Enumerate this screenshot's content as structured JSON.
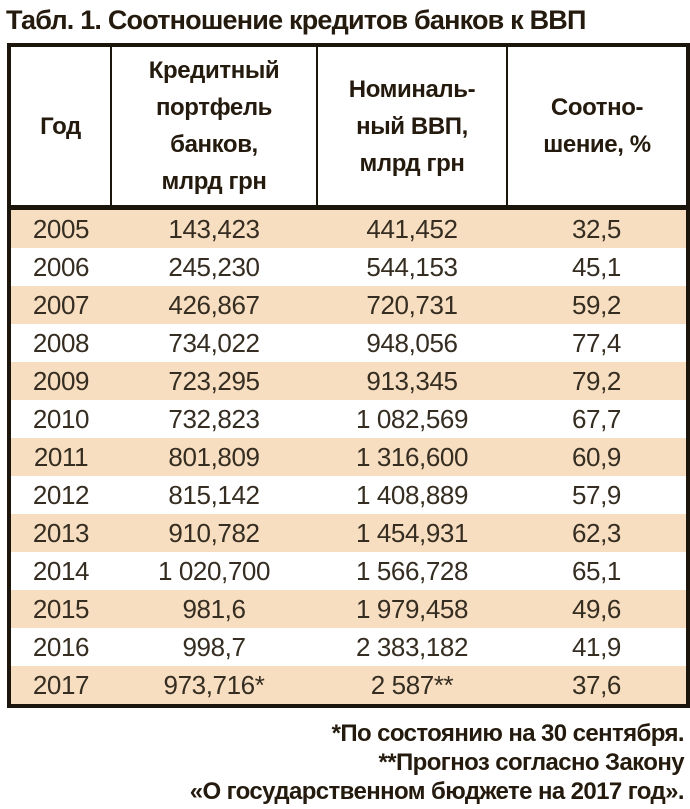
{
  "title": "Табл. 1. Соотношение кредитов банков к ВВП",
  "table": {
    "headers": [
      "Год",
      "Кредитный\nпортфель\nбанков,\nмлрд грн",
      "Номиналь-\nный ВВП,\nмлрд грн",
      "Соотно-\nшение, %"
    ],
    "rows": [
      [
        "2005",
        "143,423",
        "441,452",
        "32,5"
      ],
      [
        "2006",
        "245,230",
        "544,153",
        "45,1"
      ],
      [
        "2007",
        "426,867",
        "720,731",
        "59,2"
      ],
      [
        "2008",
        "734,022",
        "948,056",
        "77,4"
      ],
      [
        "2009",
        "723,295",
        "913,345",
        "79,2"
      ],
      [
        "2010",
        "732,823",
        "1 082,569",
        "67,7"
      ],
      [
        "2011",
        "801,809",
        "1 316,600",
        "60,9"
      ],
      [
        "2012",
        "815,142",
        "1 408,889",
        "57,9"
      ],
      [
        "2013",
        "910,782",
        "1 454,931",
        "62,3"
      ],
      [
        "2014",
        "1 020,700",
        "1 566,728",
        "65,1"
      ],
      [
        "2015",
        "981,6",
        "1 979,458",
        "49,6"
      ],
      [
        "2016",
        "998,7",
        "2 383,182",
        "41,9"
      ],
      [
        "2017",
        "973,716*",
        "2 587**",
        "37,6"
      ]
    ]
  },
  "footnotes": [
    "*По состоянию на 30 сентября.",
    "**Прогноз согласно Закону",
    "«О государственном бюджете на 2017 год»."
  ],
  "colors": {
    "stripe": "#f7dec1",
    "border": "#1c150c",
    "heading_text": "#241b0e",
    "body_text": "#352d21"
  },
  "chart_data": {
    "type": "table",
    "title": "Табл. 1. Соотношение кредитов банков к ВВП",
    "categories": [
      "2005",
      "2006",
      "2007",
      "2008",
      "2009",
      "2010",
      "2011",
      "2012",
      "2013",
      "2014",
      "2015",
      "2016",
      "2017"
    ],
    "series": [
      {
        "name": "Кредитный портфель банков, млрд грн",
        "values": [
          143.423,
          245.23,
          426.867,
          734.022,
          723.295,
          732.823,
          801.809,
          815.142,
          910.782,
          1020.7,
          981.6,
          998.7,
          973.716
        ]
      },
      {
        "name": "Номинальный ВВП, млрд грн",
        "values": [
          441.452,
          544.153,
          720.731,
          948.056,
          913.345,
          1082.569,
          1316.6,
          1408.889,
          1454.931,
          1566.728,
          1979.458,
          2383.182,
          2587
        ]
      },
      {
        "name": "Соотношение, %",
        "values": [
          32.5,
          45.1,
          59.2,
          77.4,
          79.2,
          67.7,
          60.9,
          57.9,
          62.3,
          65.1,
          49.6,
          41.9,
          37.6
        ]
      }
    ]
  }
}
